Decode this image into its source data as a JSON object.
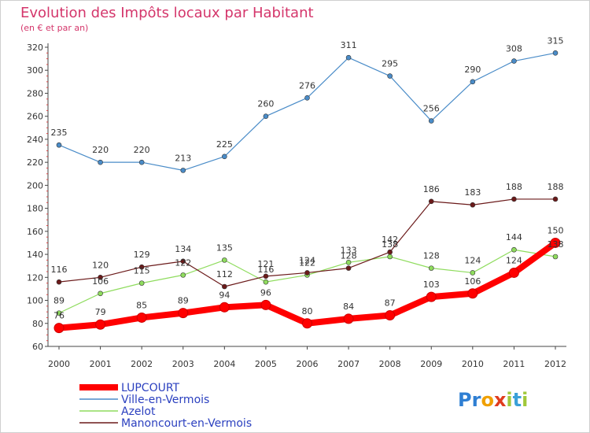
{
  "chart_data": {
    "type": "line",
    "title": "Evolution des Impôts locaux par Habitant",
    "subtitle": "(en € et par an)",
    "x": [
      "2000",
      "2001",
      "2002",
      "2003",
      "2004",
      "2005",
      "2006",
      "2007",
      "2008",
      "2009",
      "2010",
      "2011",
      "2012"
    ],
    "ylim": [
      60,
      320
    ],
    "yticks": [
      60,
      80,
      100,
      120,
      140,
      160,
      180,
      200,
      220,
      240,
      260,
      280,
      300,
      320
    ],
    "grid": false,
    "legend_position": "bottom-left",
    "series": [
      {
        "name": "Ville-en-Vermois",
        "color": "#4a8cc8",
        "values": [
          235,
          220,
          220,
          213,
          225,
          260,
          276,
          311,
          295,
          256,
          290,
          308,
          315
        ]
      },
      {
        "name": "Azelot",
        "color": "#8fdc5e",
        "values": [
          89,
          106,
          115,
          122,
          135,
          116,
          122,
          133,
          138,
          128,
          124,
          144,
          138
        ]
      },
      {
        "name": "Manoncourt-en-Vermois",
        "color": "#6b1a1a",
        "values": [
          116,
          120,
          129,
          134,
          112,
          121,
          124,
          128,
          142,
          186,
          183,
          188,
          188
        ]
      },
      {
        "name": "LUPCOURT",
        "color": "#ff0000",
        "values": [
          76,
          79,
          85,
          89,
          94,
          96,
          80,
          84,
          87,
          103,
          106,
          124,
          150
        ]
      }
    ],
    "legend_order": [
      "LUPCOURT",
      "Ville-en-Vermois",
      "Azelot",
      "Manoncourt-en-Vermois"
    ]
  },
  "logo": {
    "text": "Proxiti",
    "letters": [
      "P",
      "r",
      "o",
      "x",
      "i",
      "t",
      "i"
    ],
    "colors": [
      "#2f7fd3",
      "#2f7fd3",
      "#f0a000",
      "#e03c1e",
      "#a0c83a",
      "#3aa0d8",
      "#a0c83a"
    ]
  },
  "colors": {
    "title": "#d4366b",
    "axis": "#555555",
    "label": "#333333",
    "legend_text": "#2a3fbf"
  }
}
